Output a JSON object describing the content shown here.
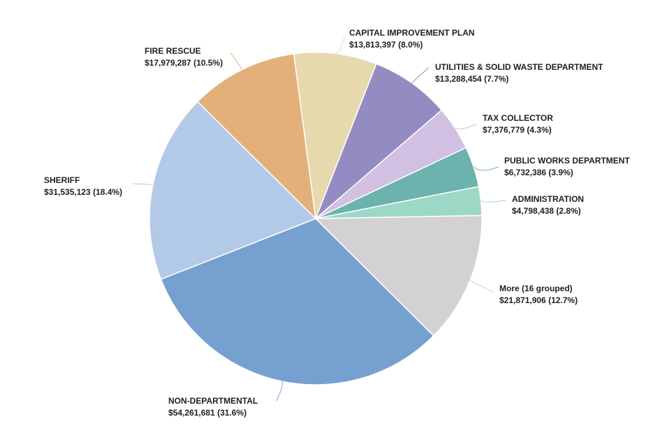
{
  "chart_data": {
    "type": "pie",
    "title": "",
    "slices": [
      {
        "label": "NON-DEPARTMENTAL",
        "amount": "$54,261,681",
        "value": 54261681,
        "percent": "31.6%",
        "color": "#76a0d0"
      },
      {
        "label": "SHERIFF",
        "amount": "$31,535,123",
        "value": 31535123,
        "percent": "18.4%",
        "color": "#b3c9e8"
      },
      {
        "label": "FIRE RESCUE",
        "amount": "$17,979,287",
        "value": 17979287,
        "percent": "10.5%",
        "color": "#e3b079"
      },
      {
        "label": "CAPITAL IMPROVEMENT PLAN",
        "amount": "$13,813,397",
        "value": 13813397,
        "percent": "8.0%",
        "color": "#e6d9ae"
      },
      {
        "label": "UTILITIES & SOLID WASTE DEPARTMENT",
        "amount": "$13,288,454",
        "value": 13288454,
        "percent": "7.7%",
        "color": "#948bc2"
      },
      {
        "label": "TAX COLLECTOR",
        "amount": "$7,376,779",
        "value": 7376779,
        "percent": "4.3%",
        "color": "#d2c0e3"
      },
      {
        "label": "PUBLIC WORKS DEPARTMENT",
        "amount": "$6,732,386",
        "value": 6732386,
        "percent": "3.9%",
        "color": "#6cb2ae"
      },
      {
        "label": "ADMINISTRATION",
        "amount": "$4,798,438",
        "value": 4798438,
        "percent": "2.8%",
        "color": "#9dd8c7"
      },
      {
        "label": "More (16 grouped)",
        "amount": "$21,871,906",
        "value": 21871906,
        "percent": "12.7%",
        "color": "#d2d2d2"
      }
    ],
    "start_angle_deg": 180,
    "direction": "clockwise",
    "show_labels": true,
    "legend": "none"
  }
}
